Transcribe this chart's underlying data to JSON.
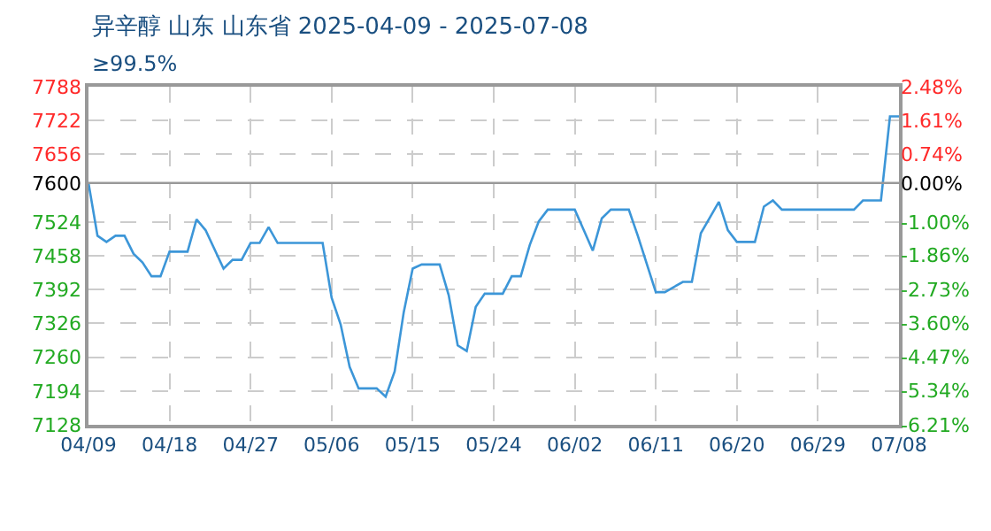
{
  "chart_data": {
    "type": "line",
    "title": "异辛醇 山东 山东省 2025-04-09 - 2025-07-08",
    "subtitle": "≥99.5%",
    "x": [
      "2025-04-09",
      "2025-04-10",
      "2025-04-11",
      "2025-04-12",
      "2025-04-13",
      "2025-04-14",
      "2025-04-15",
      "2025-04-16",
      "2025-04-17",
      "2025-04-18",
      "2025-04-20",
      "2025-04-21",
      "2025-04-22",
      "2025-04-24",
      "2025-04-25",
      "2025-04-26",
      "2025-04-27",
      "2025-04-28",
      "2025-04-29",
      "2025-04-30",
      "2025-05-05",
      "2025-05-06",
      "2025-05-07",
      "2025-05-08",
      "2025-05-09",
      "2025-05-11",
      "2025-05-12",
      "2025-05-13",
      "2025-05-14",
      "2025-05-15",
      "2025-05-16",
      "2025-05-18",
      "2025-05-19",
      "2025-05-20",
      "2025-05-21",
      "2025-05-22",
      "2025-05-23",
      "2025-05-25",
      "2025-05-26",
      "2025-05-27",
      "2025-05-28",
      "2025-05-29",
      "2025-05-30",
      "2025-06-02",
      "2025-06-03",
      "2025-06-04",
      "2025-06-05",
      "2025-06-06",
      "2025-06-08",
      "2025-06-09",
      "2025-06-11",
      "2025-06-12",
      "2025-06-14",
      "2025-06-15",
      "2025-06-16",
      "2025-06-18",
      "2025-06-19",
      "2025-06-20",
      "2025-06-22",
      "2025-06-23",
      "2025-06-24",
      "2025-06-25",
      "2025-07-03",
      "2025-07-04",
      "2025-07-06",
      "2025-07-07",
      "2025-07-08"
    ],
    "series": [
      {
        "color": "#3c96d8",
        "values": [
          7600,
          7497,
          7485,
          7497,
          7497,
          7462,
          7445,
          7418,
          7418,
          7466,
          7466,
          7529,
          7508,
          7433,
          7450,
          7450,
          7483,
          7483,
          7514,
          7483,
          7483,
          7376,
          7324,
          7241,
          7199,
          7199,
          7183,
          7232,
          7347,
          7433,
          7441,
          7441,
          7381,
          7283,
          7272,
          7358,
          7384,
          7384,
          7418,
          7418,
          7479,
          7525,
          7548,
          7548,
          7508,
          7468,
          7531,
          7548,
          7548,
          7497,
          7387,
          7387,
          7407,
          7407,
          7502,
          7563,
          7508,
          7485,
          7485,
          7554,
          7566,
          7548,
          7548,
          7566,
          7566,
          7730,
          7730
        ]
      }
    ],
    "xlim": [
      "2025-04-09",
      "2025-07-08"
    ],
    "xticks": [
      {
        "value": "2025-04-09",
        "label": "04/09"
      },
      {
        "value": "2025-04-18",
        "label": "04/18"
      },
      {
        "value": "2025-04-27",
        "label": "04/27"
      },
      {
        "value": "2025-05-06",
        "label": "05/06"
      },
      {
        "value": "2025-05-15",
        "label": "05/15"
      },
      {
        "value": "2025-05-24",
        "label": "05/24"
      },
      {
        "value": "2025-06-02",
        "label": "06/02"
      },
      {
        "value": "2025-06-11",
        "label": "06/11"
      },
      {
        "value": "2025-06-20",
        "label": "06/20"
      },
      {
        "value": "2025-06-29",
        "label": "06/29"
      },
      {
        "value": "2025-07-08",
        "label": "07/08"
      }
    ],
    "ylim": [
      7128,
      7788
    ],
    "yticks": [
      7128,
      7194,
      7260,
      7326,
      7392,
      7458,
      7524,
      7600,
      7656,
      7722,
      7788
    ],
    "y2lim": [
      -6.21,
      2.48
    ],
    "y2ticks": [
      {
        "value": -6.21,
        "label": "-6.21%"
      },
      {
        "value": -5.34,
        "label": "-5.34%"
      },
      {
        "value": -4.47,
        "label": "-4.47%"
      },
      {
        "value": -3.6,
        "label": "-3.60%"
      },
      {
        "value": -2.73,
        "label": "-2.73%"
      },
      {
        "value": -1.86,
        "label": "-1.86%"
      },
      {
        "value": -1.0,
        "label": "-1.00%"
      },
      {
        "value": 0,
        "label": "0.00%"
      },
      {
        "value": 0.74,
        "label": "0.74%"
      },
      {
        "value": 1.61,
        "label": "1.61%"
      },
      {
        "value": 2.48,
        "label": "2.48%"
      }
    ],
    "ref_lines": [
      {
        "axis": "y",
        "value": 7600,
        "color": "#999999",
        "line_style": "solid"
      }
    ],
    "grid": true,
    "legend": false,
    "marker": "none",
    "line_style": "solid"
  }
}
